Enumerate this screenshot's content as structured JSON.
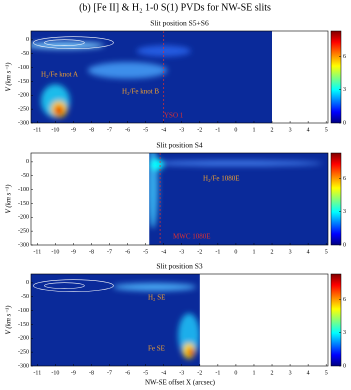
{
  "title": "(b) [Fe II] & H₂ 1-0 S(1) PVDs for NW-SE slits",
  "xlabel": "NW-SE offset X (arcsec)",
  "chart_data": [
    {
      "type": "pvd",
      "subtitle": "Slit position S5+S6",
      "ylabel": "V (km s⁻¹)",
      "xlim": [
        -11.35,
        5.1
      ],
      "xticks": [
        -11,
        -10,
        -9,
        -8,
        -7,
        -6,
        -5,
        -4,
        -3,
        -2,
        -1,
        0,
        1,
        2,
        3,
        4,
        5
      ],
      "ylim": [
        -300,
        32
      ],
      "yticks": [
        0,
        -50,
        -100,
        -150,
        -200,
        -250,
        -300
      ],
      "clim": [
        0,
        8.3
      ],
      "cticks": [
        0,
        3,
        6
      ],
      "annotations": [
        "H₂/Fe knot A",
        "H₂/Fe knot B",
        "YSO 1"
      ]
    },
    {
      "type": "pvd",
      "subtitle": "Slit position S4",
      "ylabel": "V (km s⁻¹)",
      "xlim": [
        -11.35,
        5.1
      ],
      "xticks": [
        -11,
        -10,
        -9,
        -8,
        -7,
        -6,
        -5,
        -4,
        -3,
        -2,
        -1,
        0,
        1,
        2,
        3,
        4,
        5
      ],
      "ylim": [
        -300,
        32
      ],
      "yticks": [
        0,
        -50,
        -100,
        -150,
        -200,
        -250,
        -300
      ],
      "clim": [
        0,
        8.3
      ],
      "cticks": [
        0,
        3,
        6
      ],
      "annotations": [
        "H₂/Fe 1080E",
        "MWC 1080E"
      ]
    },
    {
      "type": "pvd",
      "subtitle": "Slit position S3",
      "ylabel": "V (km s⁻¹)",
      "xlim": [
        -11.35,
        5.1
      ],
      "xticks": [
        -11,
        -10,
        -9,
        -8,
        -7,
        -6,
        -5,
        -4,
        -3,
        -2,
        -1,
        0,
        1,
        2,
        3,
        4,
        5
      ],
      "ylim": [
        -300,
        32
      ],
      "yticks": [
        0,
        -50,
        -100,
        -150,
        -200,
        -250,
        -300
      ],
      "clim": [
        0,
        8.3
      ],
      "cticks": [
        0,
        3,
        6
      ],
      "annotations": [
        "H₂ SE",
        "Fe SE"
      ]
    }
  ]
}
